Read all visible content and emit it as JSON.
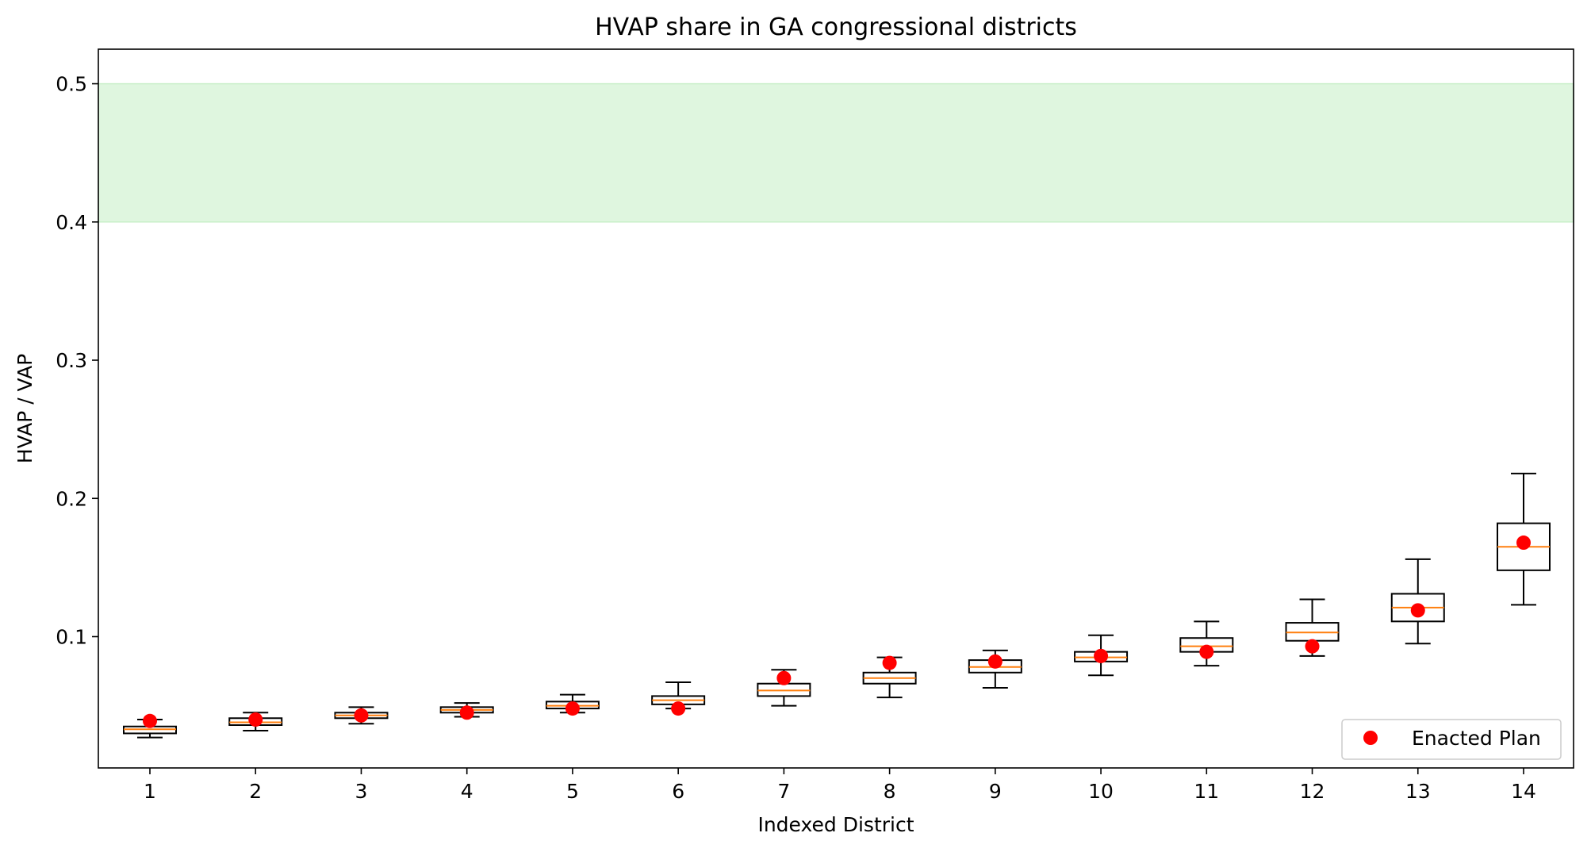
{
  "chart_data": {
    "type": "box",
    "title": "HVAP share in GA congressional districts",
    "xlabel": "Indexed District",
    "ylabel": "HVAP / VAP",
    "categories": [
      "1",
      "2",
      "3",
      "4",
      "5",
      "6",
      "7",
      "8",
      "9",
      "10",
      "11",
      "12",
      "13",
      "14"
    ],
    "ylim": [
      0.005,
      0.525
    ],
    "yticks": [
      0.1,
      0.2,
      0.3,
      0.4,
      0.5
    ],
    "ytick_labels": [
      "0.1",
      "0.2",
      "0.3",
      "0.4",
      "0.5"
    ],
    "shaded_band": {
      "from": 0.4,
      "to": 0.5,
      "color": "#dff6df",
      "edge_color": "#c8efc8"
    },
    "grid": false,
    "legend": {
      "position": "bottom-right",
      "entries": [
        "Enacted Plan"
      ]
    },
    "series": [
      {
        "kind": "box",
        "box_color": "#000000",
        "median_color": "#ff7f0e",
        "boxes": [
          {
            "whislo": 0.027,
            "q1": 0.03,
            "med": 0.033,
            "q3": 0.035,
            "whishi": 0.04
          },
          {
            "whislo": 0.032,
            "q1": 0.036,
            "med": 0.038,
            "q3": 0.041,
            "whishi": 0.045
          },
          {
            "whislo": 0.037,
            "q1": 0.041,
            "med": 0.043,
            "q3": 0.045,
            "whishi": 0.049
          },
          {
            "whislo": 0.042,
            "q1": 0.045,
            "med": 0.047,
            "q3": 0.049,
            "whishi": 0.052
          },
          {
            "whislo": 0.045,
            "q1": 0.048,
            "med": 0.05,
            "q3": 0.053,
            "whishi": 0.058
          },
          {
            "whislo": 0.048,
            "q1": 0.051,
            "med": 0.054,
            "q3": 0.057,
            "whishi": 0.067
          },
          {
            "whislo": 0.05,
            "q1": 0.057,
            "med": 0.061,
            "q3": 0.066,
            "whishi": 0.076
          },
          {
            "whislo": 0.056,
            "q1": 0.066,
            "med": 0.07,
            "q3": 0.074,
            "whishi": 0.085
          },
          {
            "whislo": 0.063,
            "q1": 0.074,
            "med": 0.078,
            "q3": 0.083,
            "whishi": 0.09
          },
          {
            "whislo": 0.072,
            "q1": 0.082,
            "med": 0.085,
            "q3": 0.089,
            "whishi": 0.101
          },
          {
            "whislo": 0.079,
            "q1": 0.089,
            "med": 0.093,
            "q3": 0.099,
            "whishi": 0.111
          },
          {
            "whislo": 0.086,
            "q1": 0.097,
            "med": 0.103,
            "q3": 0.11,
            "whishi": 0.127
          },
          {
            "whislo": 0.095,
            "q1": 0.111,
            "med": 0.121,
            "q3": 0.131,
            "whishi": 0.156
          },
          {
            "whislo": 0.123,
            "q1": 0.148,
            "med": 0.165,
            "q3": 0.182,
            "whishi": 0.218
          }
        ]
      },
      {
        "kind": "scatter",
        "name": "Enacted Plan",
        "color": "#ff0000",
        "values": [
          0.039,
          0.04,
          0.043,
          0.045,
          0.048,
          0.048,
          0.07,
          0.081,
          0.082,
          0.086,
          0.089,
          0.093,
          0.119,
          0.168
        ]
      }
    ]
  }
}
